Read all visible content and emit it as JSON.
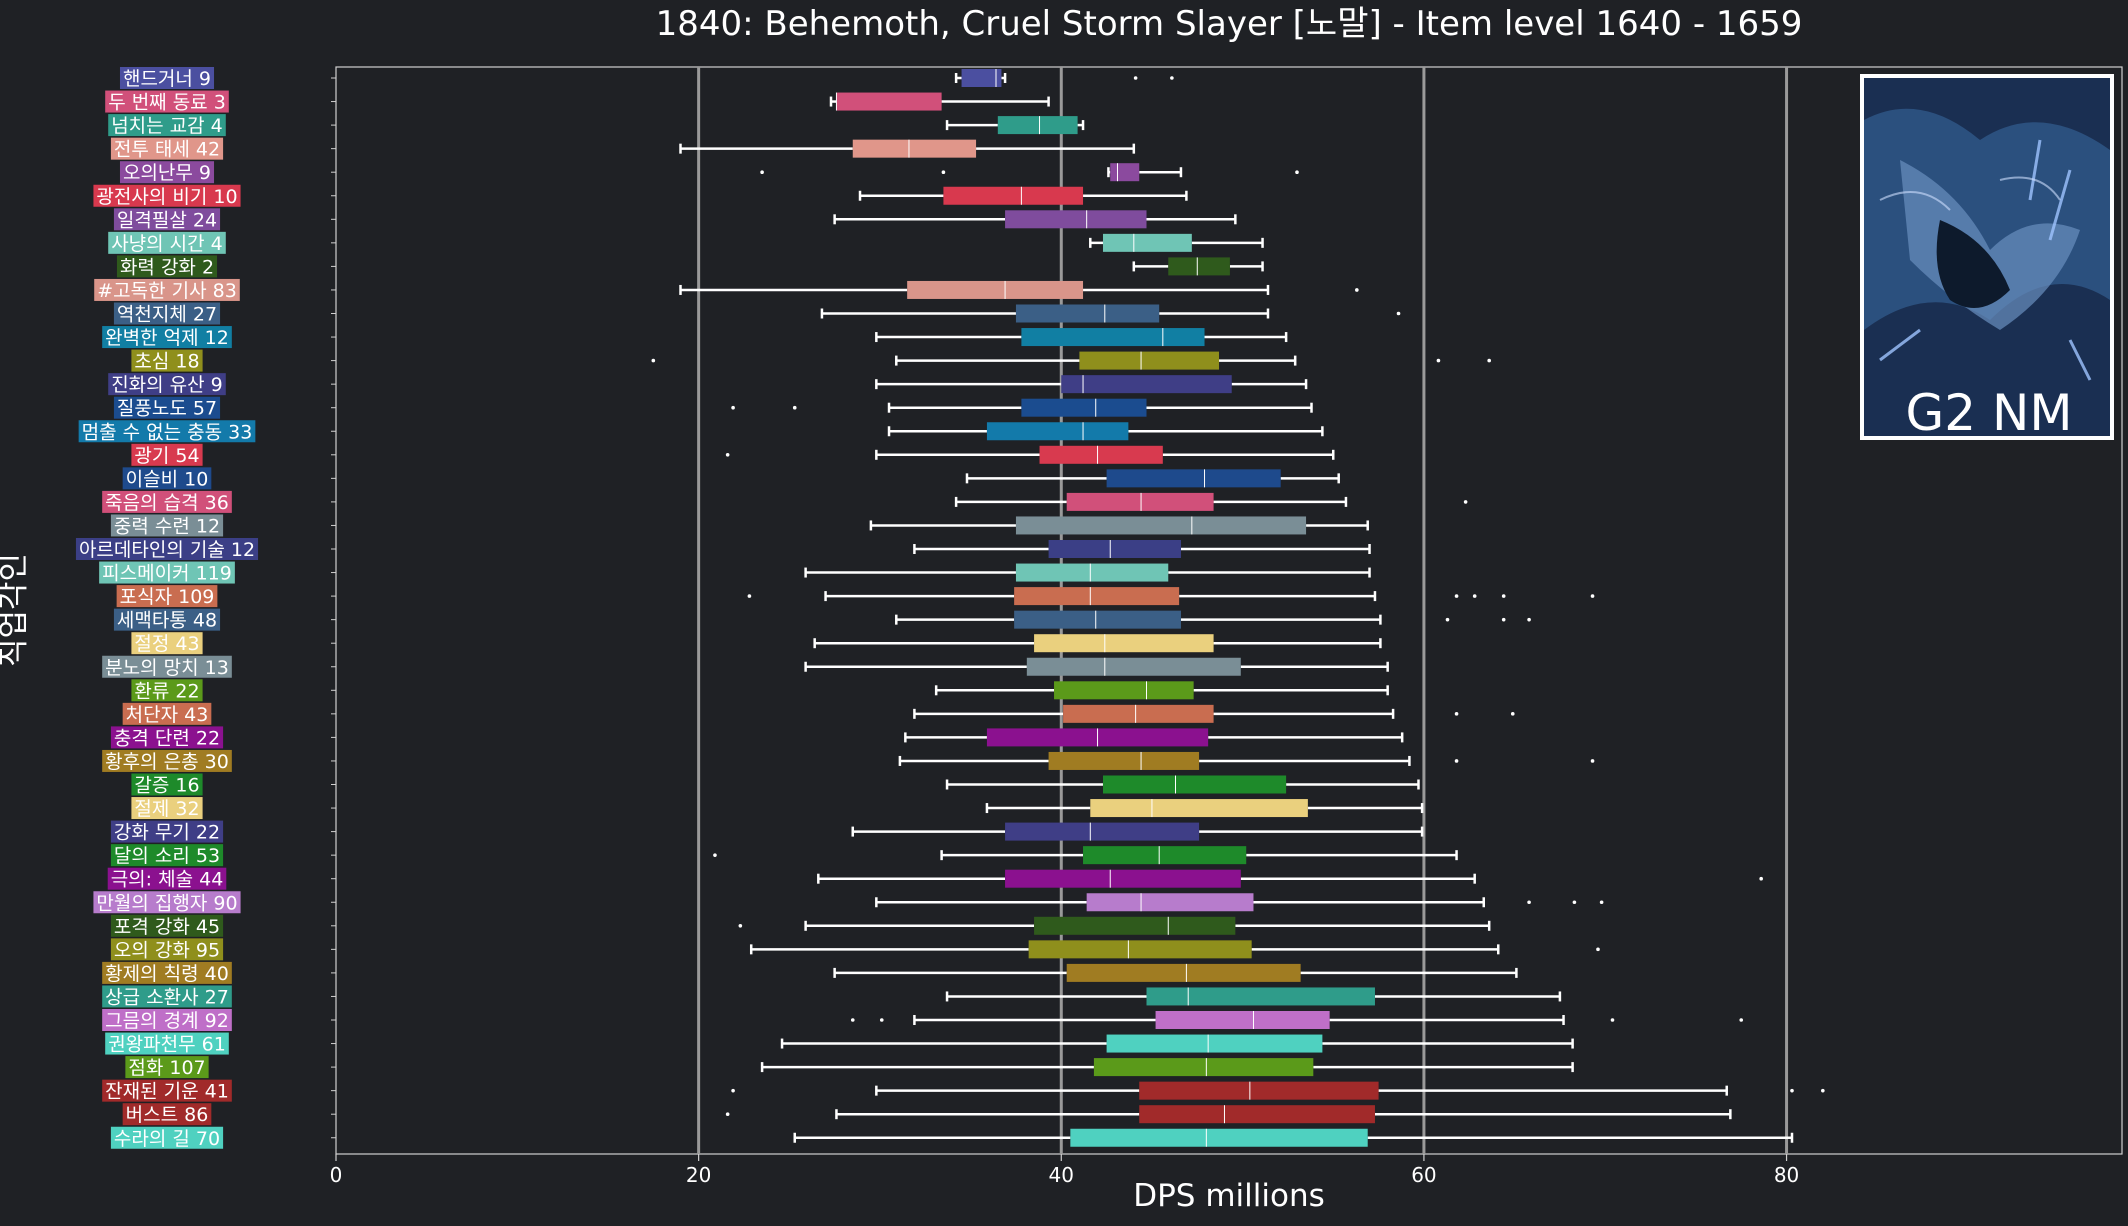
{
  "chart_data": {
    "type": "box",
    "title": "1840: Behemoth, Cruel Storm Slayer [노말] - Item level 1640 - 1659",
    "xlabel": "DPS millions",
    "ylabel": "직업각인",
    "xlim": [
      0,
      98.5
    ],
    "xticks": [
      0,
      20,
      40,
      60,
      80
    ],
    "grid": "vertical lines at 20, 40, 60, 80",
    "badge": "G2 NM",
    "series": [
      {
        "label": "핸드거너 9",
        "color": "#4b4fa0",
        "whisker_low": 34.2,
        "q1": 34.5,
        "median": 36.4,
        "q3": 36.7,
        "whisker_high": 36.9,
        "outliers": [
          44.1,
          46.1
        ]
      },
      {
        "label": "두 번째 동료 3",
        "color": "#d1507a",
        "whisker_low": 27.3,
        "q1": 27.6,
        "median": 27.6,
        "q3": 33.4,
        "whisker_high": 39.3,
        "outliers": []
      },
      {
        "label": "넘치는 교감 4",
        "color": "#2f9c8a",
        "whisker_low": 33.7,
        "q1": 36.5,
        "median": 38.8,
        "q3": 40.9,
        "whisker_high": 41.2,
        "outliers": []
      },
      {
        "label": "전투 태세 42",
        "color": "#e0968a",
        "whisker_low": 19.0,
        "q1": 28.5,
        "median": 31.6,
        "q3": 35.3,
        "whisker_high": 44.0,
        "outliers": []
      },
      {
        "label": "오의난무 9",
        "color": "#8b4a9e",
        "whisker_low": 42.6,
        "q1": 42.7,
        "median": 43.1,
        "q3": 44.3,
        "whisker_high": 46.6,
        "outliers": [
          23.5,
          33.5,
          53.0
        ]
      },
      {
        "label": "광전사의 비기 10",
        "color": "#d8394e",
        "whisker_low": 28.9,
        "q1": 33.5,
        "median": 37.8,
        "q3": 41.2,
        "whisker_high": 46.9,
        "outliers": []
      },
      {
        "label": "일격필살 24",
        "color": "#7f4c9d",
        "whisker_low": 27.5,
        "q1": 36.9,
        "median": 41.4,
        "q3": 44.7,
        "whisker_high": 49.6,
        "outliers": []
      },
      {
        "label": "사냥의 시간 4",
        "color": "#6fc5b5",
        "whisker_low": 41.6,
        "q1": 42.3,
        "median": 44.0,
        "q3": 47.2,
        "whisker_high": 51.1,
        "outliers": []
      },
      {
        "label": "화력 강화 2",
        "color": "#2f5a1c",
        "whisker_low": 44.0,
        "q1": 45.9,
        "median": 47.5,
        "q3": 49.3,
        "whisker_high": 51.1,
        "outliers": []
      },
      {
        "label": "#고독한 기사 83",
        "color": "#d9958a",
        "whisker_low": 19.0,
        "q1": 31.5,
        "median": 36.9,
        "q3": 41.2,
        "whisker_high": 51.4,
        "outliers": [
          56.3
        ]
      },
      {
        "label": "역천지체 27",
        "color": "#3b5f86",
        "whisker_low": 26.8,
        "q1": 37.5,
        "median": 42.4,
        "q3": 45.4,
        "whisker_high": 51.4,
        "outliers": [
          58.6
        ]
      },
      {
        "label": "완벽한 억제 12",
        "color": "#117fa3",
        "whisker_low": 29.8,
        "q1": 37.8,
        "median": 45.6,
        "q3": 47.9,
        "whisker_high": 52.4,
        "outliers": []
      },
      {
        "label": "초심 18",
        "color": "#8f8f1c",
        "whisker_low": 30.9,
        "q1": 41.0,
        "median": 44.4,
        "q3": 48.7,
        "whisker_high": 52.9,
        "outliers": [
          17.5,
          60.8,
          63.6
        ]
      },
      {
        "label": "진화의 유산 9",
        "color": "#3f3e86",
        "whisker_low": 29.8,
        "q1": 40.0,
        "median": 41.2,
        "q3": 49.4,
        "whisker_high": 53.5,
        "outliers": []
      },
      {
        "label": "질풍노도 57",
        "color": "#1b4c8f",
        "whisker_low": 30.5,
        "q1": 37.8,
        "median": 41.9,
        "q3": 44.7,
        "whisker_high": 53.8,
        "outliers": [
          21.9,
          25.3
        ]
      },
      {
        "label": "멈출 수 없는 충동 33",
        "color": "#137aaa",
        "whisker_low": 30.5,
        "q1": 35.9,
        "median": 41.2,
        "q3": 43.7,
        "whisker_high": 54.4,
        "outliers": []
      },
      {
        "label": "광기 54",
        "color": "#d83a4f",
        "whisker_low": 29.8,
        "q1": 38.8,
        "median": 42.0,
        "q3": 45.6,
        "whisker_high": 55.0,
        "outliers": [
          21.6
        ]
      },
      {
        "label": "이슬비 10",
        "color": "#1e4a8c",
        "whisker_low": 34.8,
        "q1": 42.5,
        "median": 47.9,
        "q3": 52.1,
        "whisker_high": 55.3,
        "outliers": []
      },
      {
        "label": "죽음의 습격 36",
        "color": "#d1507a",
        "whisker_low": 34.2,
        "q1": 40.3,
        "median": 44.4,
        "q3": 48.4,
        "whisker_high": 55.7,
        "outliers": [
          62.3
        ]
      },
      {
        "label": "중력 수련 12",
        "color": "#7a8e96",
        "whisker_low": 29.5,
        "q1": 37.5,
        "median": 47.2,
        "q3": 53.5,
        "whisker_high": 56.9,
        "outliers": []
      },
      {
        "label": "아르데타인의 기술 12",
        "color": "#3b3f86",
        "whisker_low": 31.9,
        "q1": 39.3,
        "median": 42.7,
        "q3": 46.6,
        "whisker_high": 57.0,
        "outliers": []
      },
      {
        "label": "피스메이커 119",
        "color": "#6fc5b5",
        "whisker_low": 25.9,
        "q1": 37.5,
        "median": 41.6,
        "q3": 45.9,
        "whisker_high": 57.0,
        "outliers": []
      },
      {
        "label": "포식자 109",
        "color": "#c96d50",
        "whisker_low": 27.0,
        "q1": 37.4,
        "median": 41.6,
        "q3": 46.5,
        "whisker_high": 57.3,
        "outliers": [
          22.8,
          61.8,
          62.8,
          64.4,
          69.3
        ]
      },
      {
        "label": "세맥타통 48",
        "color": "#3b5f86",
        "whisker_low": 30.9,
        "q1": 37.4,
        "median": 41.9,
        "q3": 46.6,
        "whisker_high": 57.6,
        "outliers": [
          61.3,
          64.4,
          65.8
        ]
      },
      {
        "label": "절정 43",
        "color": "#ead07e",
        "whisker_low": 26.4,
        "q1": 38.5,
        "median": 42.4,
        "q3": 48.4,
        "whisker_high": 57.6,
        "outliers": []
      },
      {
        "label": "분노의 망치 13",
        "color": "#7a8e96",
        "whisker_low": 25.9,
        "q1": 38.1,
        "median": 42.4,
        "q3": 49.9,
        "whisker_high": 58.0,
        "outliers": []
      },
      {
        "label": "환류 22",
        "color": "#5b9a1a",
        "whisker_low": 33.1,
        "q1": 39.6,
        "median": 44.7,
        "q3": 47.3,
        "whisker_high": 58.0,
        "outliers": []
      },
      {
        "label": "처단자 43",
        "color": "#c96d50",
        "whisker_low": 31.9,
        "q1": 40.1,
        "median": 44.1,
        "q3": 48.4,
        "whisker_high": 58.3,
        "outliers": [
          61.8,
          64.9
        ]
      },
      {
        "label": "충격 단련 22",
        "color": "#8b118f",
        "whisker_low": 31.4,
        "q1": 35.9,
        "median": 42.0,
        "q3": 48.1,
        "whisker_high": 58.8,
        "outliers": []
      },
      {
        "label": "황후의 은총 30",
        "color": "#a07c22",
        "whisker_low": 31.1,
        "q1": 39.3,
        "median": 44.4,
        "q3": 47.6,
        "whisker_high": 59.2,
        "outliers": [
          61.8,
          69.3
        ]
      },
      {
        "label": "갈증 16",
        "color": "#1e8a2a",
        "whisker_low": 33.7,
        "q1": 42.3,
        "median": 46.3,
        "q3": 52.4,
        "whisker_high": 59.7,
        "outliers": []
      },
      {
        "label": "절제 32",
        "color": "#ead07e",
        "whisker_low": 35.9,
        "q1": 41.6,
        "median": 45.0,
        "q3": 53.6,
        "whisker_high": 59.9,
        "outliers": []
      },
      {
        "label": "강화 무기 22",
        "color": "#3f3e86",
        "whisker_low": 28.5,
        "q1": 36.9,
        "median": 41.6,
        "q3": 47.6,
        "whisker_high": 59.9,
        "outliers": []
      },
      {
        "label": "달의 소리 53",
        "color": "#1e8a2a",
        "whisker_low": 33.4,
        "q1": 41.2,
        "median": 45.4,
        "q3": 50.2,
        "whisker_high": 61.8,
        "outliers": [
          20.9
        ]
      },
      {
        "label": "극의: 체술 44",
        "color": "#8b118f",
        "whisker_low": 26.6,
        "q1": 36.9,
        "median": 42.7,
        "q3": 49.9,
        "whisker_high": 62.8,
        "outliers": [
          78.6
        ]
      },
      {
        "label": "만월의 집행자 90",
        "color": "#b77ccc",
        "whisker_low": 29.8,
        "q1": 41.4,
        "median": 44.4,
        "q3": 50.6,
        "whisker_high": 63.3,
        "outliers": [
          65.8,
          68.3,
          69.8
        ]
      },
      {
        "label": "포격 강화 45",
        "color": "#2f5a1c",
        "whisker_low": 25.9,
        "q1": 38.5,
        "median": 45.9,
        "q3": 49.6,
        "whisker_high": 63.6,
        "outliers": [
          22.3
        ]
      },
      {
        "label": "오의 강화 95",
        "color": "#8f8f1c",
        "whisker_low": 22.9,
        "q1": 38.2,
        "median": 43.7,
        "q3": 50.5,
        "whisker_high": 64.1,
        "outliers": [
          69.6
        ]
      },
      {
        "label": "황제의 칙령 40",
        "color": "#a07c22",
        "whisker_low": 27.5,
        "q1": 40.3,
        "median": 46.9,
        "q3": 53.2,
        "whisker_high": 65.1,
        "outliers": []
      },
      {
        "label": "상급 소환사 27",
        "color": "#2f9c8a",
        "whisker_low": 33.7,
        "q1": 44.7,
        "median": 47.0,
        "q3": 57.3,
        "whisker_high": 67.5,
        "outliers": []
      },
      {
        "label": "그믐의 경계 92",
        "color": "#bf6fc8",
        "whisker_low": 31.9,
        "q1": 45.2,
        "median": 50.6,
        "q3": 54.8,
        "whisker_high": 67.7,
        "outliers": [
          28.5,
          30.1,
          70.4,
          77.5
        ]
      },
      {
        "label": "권왕파천무 61",
        "color": "#4fd1c0",
        "whisker_low": 24.6,
        "q1": 42.5,
        "median": 48.1,
        "q3": 54.4,
        "whisker_high": 68.2,
        "outliers": []
      },
      {
        "label": "점화 107",
        "color": "#5b9a1a",
        "whisker_low": 23.5,
        "q1": 41.8,
        "median": 48.0,
        "q3": 53.9,
        "whisker_high": 68.2,
        "outliers": []
      },
      {
        "label": "잔재된 기운 41",
        "color": "#a12a2a",
        "whisker_low": 29.8,
        "q1": 44.3,
        "median": 50.4,
        "q3": 57.5,
        "whisker_high": 76.7,
        "outliers": [
          21.9,
          80.3,
          82.0
        ]
      },
      {
        "label": "버스트 86",
        "color": "#a12a2a",
        "whisker_low": 27.6,
        "q1": 44.3,
        "median": 49.0,
        "q3": 57.3,
        "whisker_high": 76.9,
        "outliers": [
          21.6
        ]
      },
      {
        "label": "수라의 길 70",
        "color": "#4fd1c0",
        "whisker_low": 25.3,
        "q1": 40.5,
        "median": 48.0,
        "q3": 56.9,
        "whisker_high": 80.3,
        "outliers": []
      }
    ]
  }
}
